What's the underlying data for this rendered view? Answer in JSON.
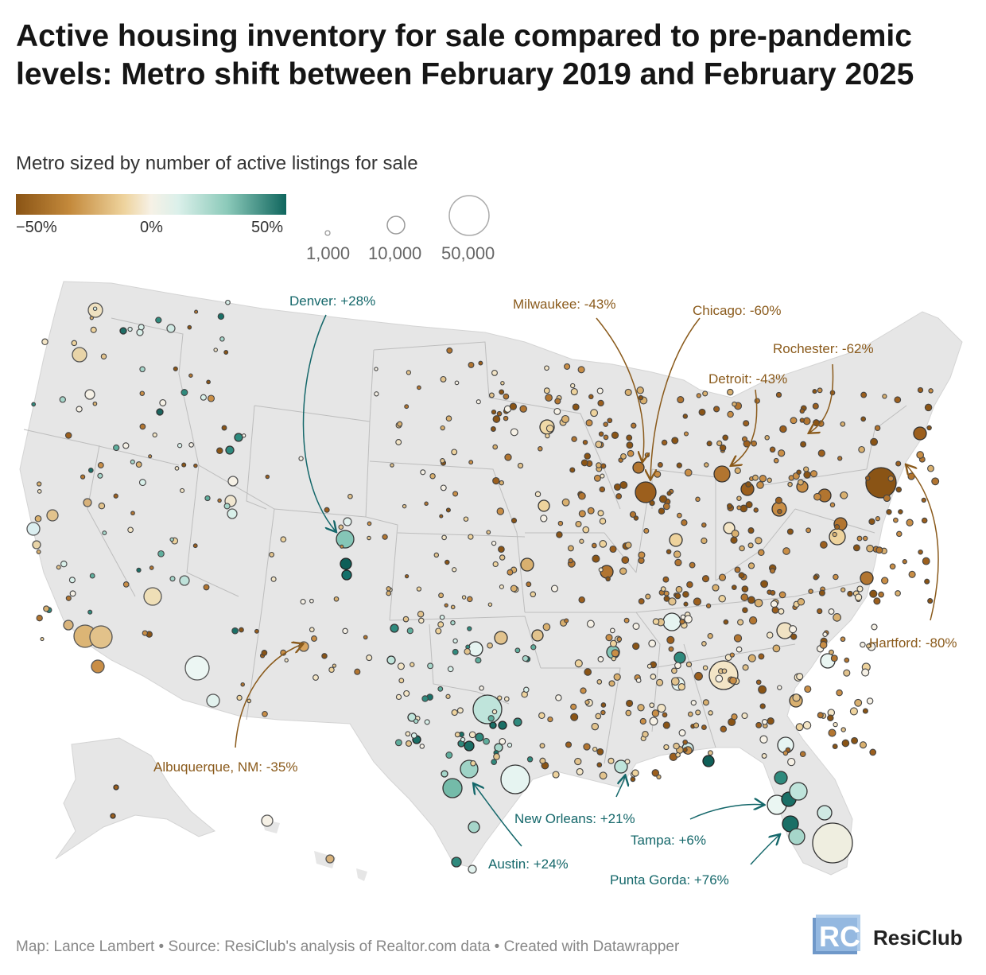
{
  "title": "Active housing inventory for sale compared to pre-pandemic levels: Metro shift between February 2019 and February 2025",
  "subtitle": "Metro sized by number of active listings for sale",
  "color_legend": {
    "ticks": [
      "−50%",
      "0%",
      "50%"
    ],
    "colors": [
      "#8a5415",
      "#c48a3c",
      "#eed39d",
      "#f6f1e6",
      "#dbf0ea",
      "#8ccaba",
      "#10665e"
    ]
  },
  "size_legend": {
    "labels": [
      "1,000",
      "10,000",
      "50,000"
    ]
  },
  "annotations": [
    {
      "label": "Denver: +28%",
      "color": "#14676a"
    },
    {
      "label": "Milwaukee: -43%",
      "color": "#8a5a1b"
    },
    {
      "label": "Chicago: -60%",
      "color": "#8a5a1b"
    },
    {
      "label": "Rochester: -62%",
      "color": "#8a5a1b"
    },
    {
      "label": "Detroit: -43%",
      "color": "#8a5a1b"
    },
    {
      "label": "Hartford: -80%",
      "color": "#8a5a1b"
    },
    {
      "label": "Albuquerque, NM: -35%",
      "color": "#8a5a1b"
    },
    {
      "label": "New Orleans: +21%",
      "color": "#14676a"
    },
    {
      "label": "Austin: +24%",
      "color": "#14676a"
    },
    {
      "label": "Tampa: +6%",
      "color": "#14676a"
    },
    {
      "label": "Punta Gorda: +76%",
      "color": "#14676a"
    }
  ],
  "source": "Map: Lance Lambert • Source: ResiClub's analysis of Realtor.com data • Created with Datawrapper",
  "logo": {
    "mark": "RC",
    "text": "ResiClub"
  }
}
